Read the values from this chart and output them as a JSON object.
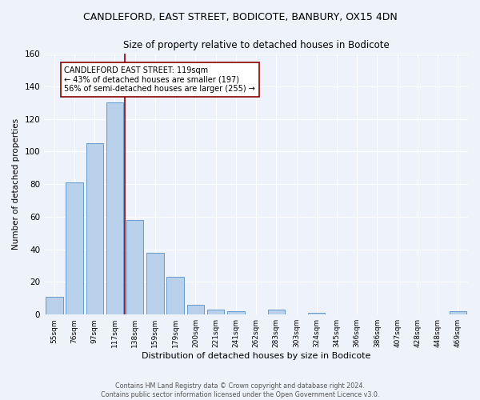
{
  "title": "CANDLEFORD, EAST STREET, BODICOTE, BANBURY, OX15 4DN",
  "subtitle": "Size of property relative to detached houses in Bodicote",
  "xlabel": "Distribution of detached houses by size in Bodicote",
  "ylabel": "Number of detached properties",
  "categories": [
    "55sqm",
    "76sqm",
    "97sqm",
    "117sqm",
    "138sqm",
    "159sqm",
    "179sqm",
    "200sqm",
    "221sqm",
    "241sqm",
    "262sqm",
    "283sqm",
    "303sqm",
    "324sqm",
    "345sqm",
    "366sqm",
    "386sqm",
    "407sqm",
    "428sqm",
    "448sqm",
    "469sqm"
  ],
  "values": [
    11,
    81,
    105,
    130,
    58,
    38,
    23,
    6,
    3,
    2,
    0,
    3,
    0,
    1,
    0,
    0,
    0,
    0,
    0,
    0,
    2
  ],
  "bar_color": "#b8d0ea",
  "bar_edge_color": "#6699cc",
  "red_line_x": 3.5,
  "annotation_title": "CANDLEFORD EAST STREET: 119sqm",
  "annotation_line1": "← 43% of detached houses are smaller (197)",
  "annotation_line2": "56% of semi-detached houses are larger (255) →",
  "ylim": [
    0,
    160
  ],
  "yticks": [
    0,
    20,
    40,
    60,
    80,
    100,
    120,
    140,
    160
  ],
  "footer_line1": "Contains HM Land Registry data © Crown copyright and database right 2024.",
  "footer_line2": "Contains public sector information licensed under the Open Government Licence v3.0.",
  "bg_color": "#eef2fa",
  "grid_color": "#ffffff",
  "title_fontsize": 9,
  "subtitle_fontsize": 8.5
}
